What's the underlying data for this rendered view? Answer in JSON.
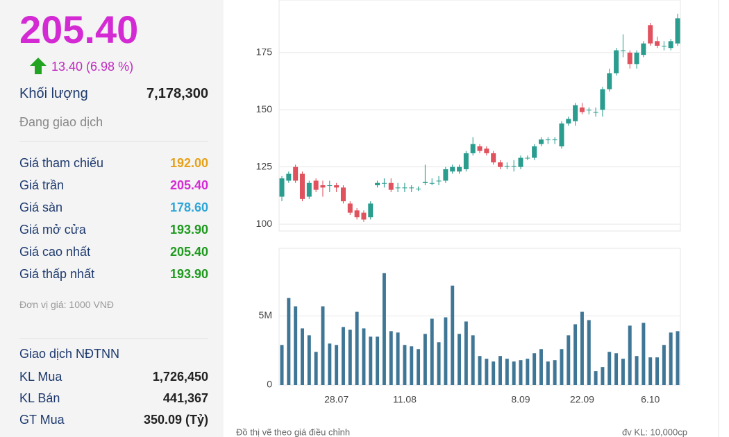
{
  "panel": {
    "price": "205.40",
    "change": "13.40 (6.98 %)",
    "volume": {
      "label": "Khối lượng",
      "value": "7,178,300"
    },
    "status": "Đang giao dịch",
    "prices": [
      {
        "label": "Giá tham chiếu",
        "value": "192.00",
        "color": "#e6a117"
      },
      {
        "label": "Giá trần",
        "value": "205.40",
        "color": "#d42ad4"
      },
      {
        "label": "Giá sàn",
        "value": "178.60",
        "color": "#2fa6d8"
      },
      {
        "label": "Giá mở cửa",
        "value": "193.90",
        "color": "#1f9a1f"
      },
      {
        "label": "Giá cao nhất",
        "value": "205.40",
        "color": "#1f9a1f"
      },
      {
        "label": "Giá thấp nhất",
        "value": "193.90",
        "color": "#1f9a1f"
      }
    ],
    "unit": "Đơn vị giá: 1000 VNĐ",
    "foreign": {
      "title": "Giao dịch NĐTNN",
      "rows": [
        [
          "KL Mua",
          "1,726,450"
        ],
        [
          "KL Bán",
          "441,367"
        ],
        [
          "GT Mua",
          "350.09 (Tỷ)"
        ]
      ]
    }
  },
  "footer": {
    "note": "Đồ thị vẽ theo giá điều chỉnh",
    "unit": "đv KL: 10,000cp"
  },
  "chart_data": [
    {
      "type": "candlestick",
      "categories": [
        null,
        null,
        null,
        null,
        null,
        null,
        null,
        null,
        "28.07",
        null,
        null,
        null,
        null,
        null,
        null,
        null,
        null,
        null,
        "11.08",
        null,
        null,
        null,
        null,
        null,
        null,
        null,
        null,
        null,
        null,
        null,
        null,
        null,
        null,
        null,
        null,
        "8.09",
        null,
        null,
        null,
        null,
        null,
        null,
        null,
        null,
        "22.09",
        null,
        null,
        null,
        null,
        null,
        null,
        null,
        null,
        null,
        "6.10",
        null,
        null,
        null,
        null
      ],
      "open": [
        112,
        119,
        125,
        122,
        112,
        119,
        117,
        117,
        117,
        116,
        109,
        106,
        105,
        103,
        117,
        118,
        118,
        116,
        116,
        116,
        115.5,
        118,
        118,
        119,
        119,
        123,
        123,
        124,
        131,
        134,
        133,
        131,
        127,
        125.5,
        125.5,
        125,
        129,
        129,
        135,
        137,
        137,
        134,
        144,
        145,
        151,
        150,
        149,
        150,
        159,
        166,
        176,
        175,
        170,
        174,
        187,
        180,
        178,
        177,
        179
      ],
      "high": [
        121,
        123,
        126,
        123,
        119,
        120,
        119,
        119,
        118,
        117,
        110,
        107,
        106,
        110,
        119,
        120,
        120,
        118,
        118,
        117,
        116.5,
        126,
        120,
        121,
        125,
        126,
        126,
        132,
        138,
        135,
        134,
        132,
        128,
        127,
        128,
        130,
        130,
        135,
        138,
        138,
        138,
        145,
        147,
        153,
        153,
        151,
        151,
        160,
        168,
        177,
        183,
        176,
        176,
        180,
        188,
        182,
        180,
        181,
        192
      ],
      "low": [
        110,
        118,
        118,
        110,
        111,
        114,
        112,
        114,
        114,
        109,
        104,
        102,
        101,
        102,
        116,
        116,
        114,
        114,
        114,
        114,
        114.5,
        117,
        117,
        117,
        118,
        122,
        122,
        123,
        130,
        131,
        130,
        126,
        124,
        124,
        123,
        124,
        128,
        128,
        134,
        135,
        135,
        133,
        143,
        143,
        148,
        148,
        147,
        147,
        158,
        165,
        173,
        168,
        168,
        173,
        178,
        177,
        176,
        176,
        178
      ],
      "close": [
        120,
        122,
        119,
        111,
        118,
        115,
        116,
        117,
        116,
        110,
        105,
        103,
        102,
        109,
        118,
        118,
        115,
        116,
        116,
        116,
        115.5,
        118.5,
        118,
        119,
        124,
        125,
        125,
        131,
        135,
        132,
        131,
        127,
        125,
        125.5,
        125.5,
        129,
        129,
        134,
        137,
        137,
        137,
        144,
        146,
        152,
        149,
        150,
        149,
        159,
        166,
        176,
        176,
        170,
        175,
        179,
        179,
        178,
        178,
        180,
        190
      ],
      "up_color": "#2a9d8f",
      "down_color": "#e0525e",
      "ylim": [
        97,
        198
      ],
      "yticks": [
        100,
        125,
        150,
        175
      ],
      "grid": true
    },
    {
      "type": "bar",
      "categories": [
        null,
        null,
        null,
        null,
        null,
        null,
        null,
        null,
        "28.07",
        null,
        null,
        null,
        null,
        null,
        null,
        null,
        null,
        null,
        "11.08",
        null,
        null,
        null,
        null,
        null,
        null,
        null,
        null,
        null,
        null,
        null,
        null,
        null,
        null,
        null,
        null,
        "8.09",
        null,
        null,
        null,
        null,
        null,
        null,
        null,
        null,
        "22.09",
        null,
        null,
        null,
        null,
        null,
        null,
        null,
        null,
        null,
        "6.10",
        null,
        null,
        null,
        null
      ],
      "values": [
        2900000,
        6300000,
        5700000,
        4100000,
        3600000,
        2400000,
        5700000,
        3000000,
        2900000,
        4200000,
        4000000,
        5300000,
        4100000,
        3500000,
        3500000,
        8100000,
        3900000,
        3800000,
        2900000,
        2800000,
        2600000,
        3700000,
        4800000,
        3100000,
        4900000,
        7200000,
        3700000,
        4600000,
        3600000,
        2100000,
        1900000,
        1700000,
        2100000,
        1900000,
        1700000,
        1800000,
        1900000,
        2300000,
        2600000,
        1700000,
        1800000,
        2600000,
        3600000,
        4400000,
        5300000,
        4700000,
        1000000,
        1300000,
        2400000,
        2300000,
        1900000,
        4300000,
        2100000,
        4500000,
        2000000,
        2000000,
        2900000,
        3800000,
        3900000
      ],
      "color": "#3f7695",
      "ylim": [
        0,
        9900000
      ],
      "yticks": [
        0,
        {
          "value": 5000000,
          "label": "5M"
        }
      ],
      "grid": true
    }
  ]
}
